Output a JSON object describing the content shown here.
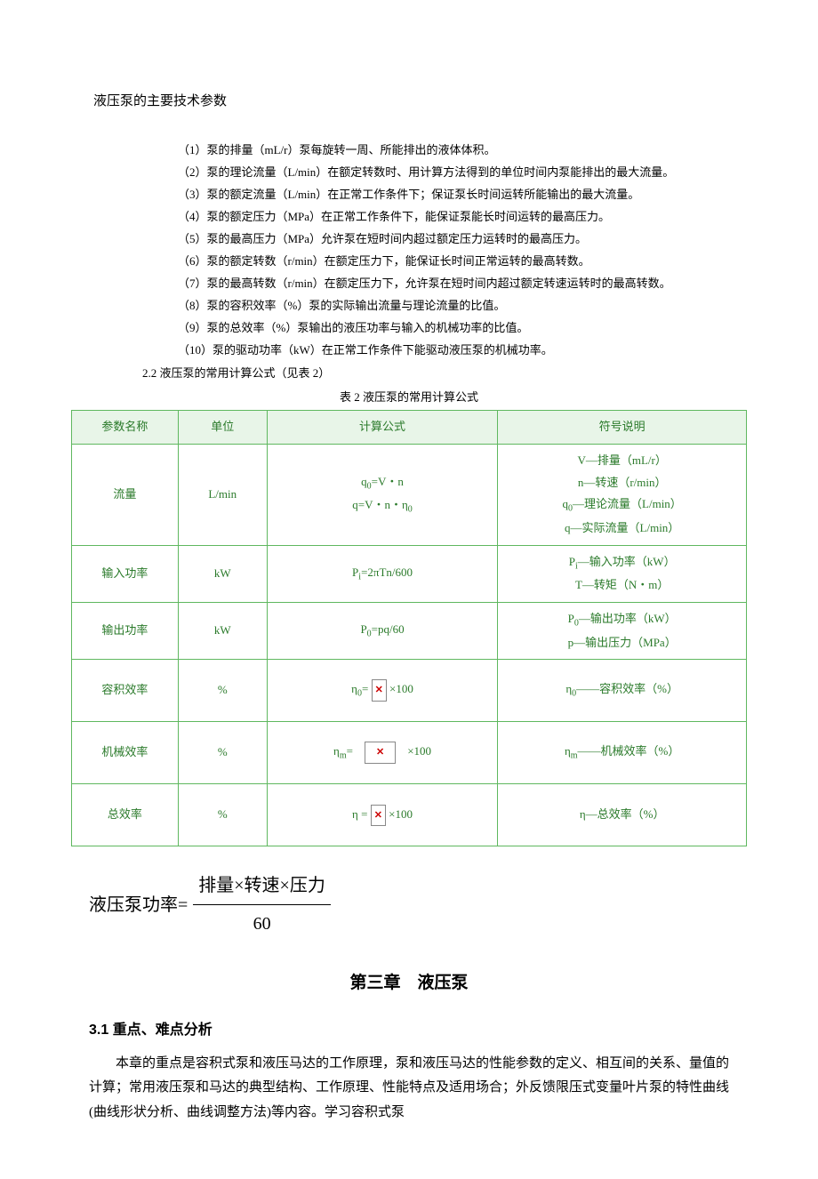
{
  "title": "液压泵的主要技术参数",
  "params": [
    "（1）泵的排量（mL/r）泵每旋转一周、所能排出的液体体积。",
    "（2）泵的理论流量（L/min）在额定转数时、用计算方法得到的单位时间内泵能排出的最大流量。",
    "（3）泵的额定流量（L/min）在正常工作条件下；保证泵长时间运转所能输出的最大流量。",
    "（4）泵的额定压力（MPa）在正常工作条件下，能保证泵能长时间运转的最高压力。",
    "（5）泵的最高压力（MPa）允许泵在短时间内超过额定压力运转时的最高压力。",
    "（6）泵的额定转数（r/min）在额定压力下，能保证长时间正常运转的最高转数。",
    "（7）泵的最高转数（r/min）在额定压力下，允许泵在短时间内超过额定转速运转时的最高转数。",
    "（8）泵的容积效率（%）泵的实际输出流量与理论流量的比值。",
    "（9）泵的总效率（%）泵输出的液压功率与输入的机械功率的比值。",
    "（10）泵的驱动功率（kW）在正常工作条件下能驱动液压泵的机械功率。"
  ],
  "sec22": "2.2 液压泵的常用计算公式（见表 2）",
  "tableCaption": "表 2 液压泵的常用计算公式",
  "table": {
    "headers": [
      "参数名称",
      "单位",
      "计算公式",
      "符号说明"
    ],
    "colWidths": [
      "120px",
      "100px",
      "260px",
      "280px"
    ],
    "rows": [
      {
        "class": "row-tall",
        "name": "流量",
        "unit": "L/min",
        "formula": "q<sub>0</sub>=V・n<br>q=V・n・η<sub>0</sub>",
        "symbols": "V—排量（mL/r）<br>n—转速（r/min）<br>q<sub>0</sub>—理论流量（L/min）<br>q—实际流量（L/min）"
      },
      {
        "class": "row-med",
        "name": "输入功率",
        "unit": "kW",
        "formula": "P<sub>i</sub>=2πTn/600",
        "symbols": "P<sub>i</sub>—输入功率（kW）<br>T—转矩（N・m）"
      },
      {
        "class": "row-med",
        "name": "输出功率",
        "unit": "kW",
        "formula": "P<sub>0</sub>=pq/60",
        "symbols": "P<sub>0</sub>—输出功率（kW）<br>p—输出压力（MPa）"
      },
      {
        "class": "row-vol",
        "name": "容积效率",
        "unit": "%",
        "formula": "η<sub>0</sub>= <span class=\"broken-img\">✕</span> ×100",
        "symbols": "η<sub>0</sub>——容积效率（%）"
      },
      {
        "class": "row-mech",
        "name": "机械效率",
        "unit": "%",
        "formula": "η<sub>m</sub>=　<span class=\"broken-img-wide\">✕</span>　×100",
        "symbols": "η<sub>m</sub>——机械效率（%）"
      },
      {
        "class": "row-total",
        "name": "总效率",
        "unit": "%",
        "formula": "η = <span class=\"broken-img\">✕</span> ×100",
        "symbols": "η—总效率（%）"
      }
    ]
  },
  "powerFormula": {
    "left": "液压泵功率=",
    "top": "排量×转速×压力",
    "bot": "60"
  },
  "chapterTitle": "第三章　液压泵",
  "sectionTitle": "3.1 重点、难点分析",
  "bodyPara": "本章的重点是容积式泵和液压马达的工作原理，泵和液压马达的性能参数的定义、相互间的关系、量值的计算；常用液压泵和马达的典型结构、工作原理、性能特点及适用场合；外反馈限压式变量叶片泵的特性曲线(曲线形状分析、曲线调整方法)等内容。学习容积式泵",
  "colors": {
    "tableBorder": "#5fb85f",
    "tableHeaderBg": "#e8f5e8",
    "tableText": "#2a7a2a",
    "bodyText": "#000000",
    "background": "#ffffff",
    "brokenImgBorder": "#888888",
    "brokenImgText": "#cc0000"
  }
}
